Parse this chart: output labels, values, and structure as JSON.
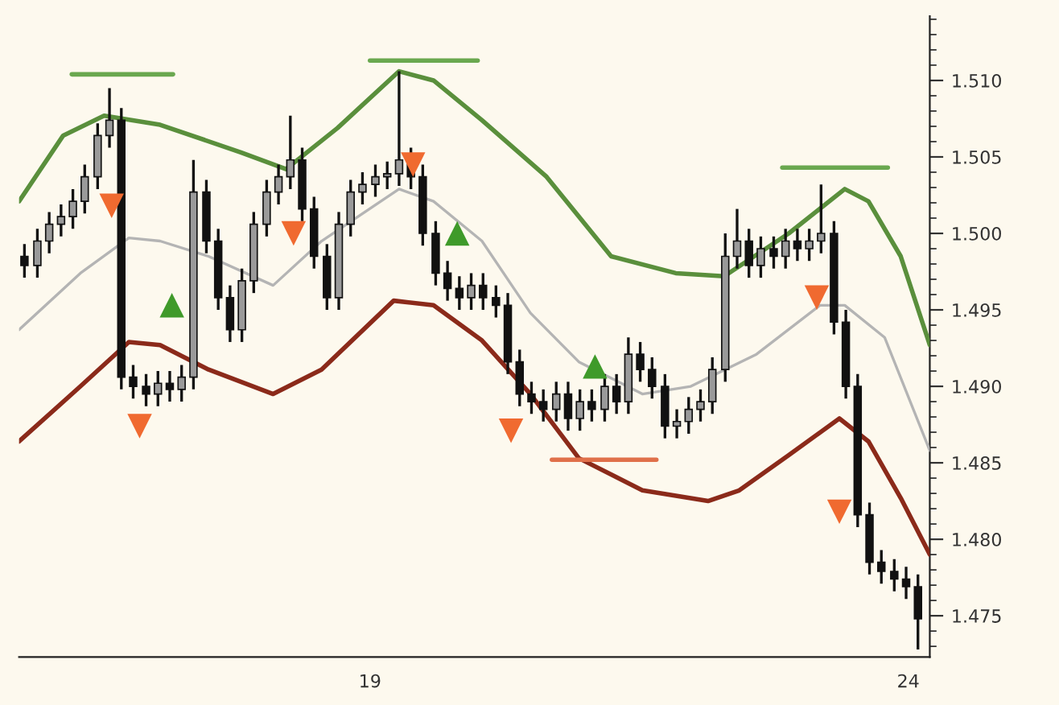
{
  "chart_data": {
    "type": "candlestick",
    "x": [
      15.79,
      15.91,
      16.02,
      16.13,
      16.24,
      16.35,
      16.47,
      16.58,
      16.69,
      16.8,
      16.92,
      17.03,
      17.14,
      17.25,
      17.36,
      17.48,
      17.59,
      17.7,
      17.81,
      17.92,
      18.04,
      18.15,
      18.26,
      18.37,
      18.48,
      18.6,
      18.71,
      18.82,
      18.93,
      19.05,
      19.16,
      19.27,
      19.38,
      19.49,
      19.61,
      19.72,
      19.83,
      19.94,
      20.05,
      20.17,
      20.28,
      20.39,
      20.5,
      20.61,
      20.73,
      20.84,
      20.95,
      21.06,
      21.18,
      21.29,
      21.4,
      21.51,
      21.62,
      21.74,
      21.85,
      21.96,
      22.07,
      22.18,
      22.3,
      22.41,
      22.52,
      22.63,
      22.75,
      22.86,
      22.97,
      23.08,
      23.19,
      23.31,
      23.42,
      23.53,
      23.64,
      23.75,
      23.87,
      23.98,
      24.09
    ],
    "ohlc": [
      [
        1.4985,
        1.4993,
        1.4971,
        1.4979
      ],
      [
        1.4979,
        1.5003,
        1.4971,
        1.4995
      ],
      [
        1.4995,
        1.5014,
        1.4987,
        1.5006
      ],
      [
        1.5006,
        1.5019,
        1.4998,
        1.5011
      ],
      [
        1.5011,
        1.5029,
        1.5003,
        1.5021
      ],
      [
        1.5021,
        1.5045,
        1.5013,
        1.5037
      ],
      [
        1.5037,
        1.5072,
        1.5029,
        1.5064
      ],
      [
        1.5064,
        1.5095,
        1.5056,
        1.5074
      ],
      [
        1.5074,
        1.5082,
        1.4898,
        1.4906
      ],
      [
        1.4906,
        1.4914,
        1.4892,
        1.49
      ],
      [
        1.49,
        1.4908,
        1.4887,
        1.4895
      ],
      [
        1.4895,
        1.491,
        1.4887,
        1.4902
      ],
      [
        1.4902,
        1.491,
        1.489,
        1.4898
      ],
      [
        1.4898,
        1.4914,
        1.489,
        1.4906
      ],
      [
        1.4906,
        1.5048,
        1.4898,
        1.5027
      ],
      [
        1.5027,
        1.5035,
        1.4987,
        1.4995
      ],
      [
        1.4995,
        1.5003,
        1.495,
        1.4958
      ],
      [
        1.4958,
        1.4966,
        1.4929,
        1.4937
      ],
      [
        1.4937,
        1.4977,
        1.4929,
        1.4969
      ],
      [
        1.4969,
        1.5014,
        1.4961,
        1.5006
      ],
      [
        1.5006,
        1.5035,
        1.4998,
        1.5027
      ],
      [
        1.5027,
        1.5045,
        1.5019,
        1.5037
      ],
      [
        1.5037,
        1.5077,
        1.5029,
        1.5048
      ],
      [
        1.5048,
        1.5056,
        1.5008,
        1.5016
      ],
      [
        1.5016,
        1.5024,
        1.4977,
        1.4985
      ],
      [
        1.4985,
        1.4993,
        1.495,
        1.4958
      ],
      [
        1.4958,
        1.5014,
        1.495,
        1.5006
      ],
      [
        1.5006,
        1.5035,
        1.4998,
        1.5027
      ],
      [
        1.5027,
        1.504,
        1.5019,
        1.5032
      ],
      [
        1.5032,
        1.5045,
        1.5024,
        1.5037
      ],
      [
        1.5037,
        1.5047,
        1.5029,
        1.5039
      ],
      [
        1.5039,
        1.5106,
        1.5031,
        1.5048
      ],
      [
        1.5048,
        1.5056,
        1.5029,
        1.5037
      ],
      [
        1.5037,
        1.5045,
        1.4992,
        1.5
      ],
      [
        1.5,
        1.5008,
        1.4966,
        1.4974
      ],
      [
        1.4974,
        1.4982,
        1.4956,
        1.4964
      ],
      [
        1.4964,
        1.4972,
        1.495,
        1.4958
      ],
      [
        1.4958,
        1.4974,
        1.495,
        1.4966
      ],
      [
        1.4966,
        1.4974,
        1.495,
        1.4958
      ],
      [
        1.4958,
        1.4966,
        1.4945,
        1.4953
      ],
      [
        1.4953,
        1.4961,
        1.4908,
        1.4916
      ],
      [
        1.4916,
        1.4924,
        1.4887,
        1.4895
      ],
      [
        1.4895,
        1.4903,
        1.4882,
        1.489
      ],
      [
        1.489,
        1.4898,
        1.4877,
        1.4885
      ],
      [
        1.4885,
        1.4903,
        1.4877,
        1.4895
      ],
      [
        1.4895,
        1.4903,
        1.4871,
        1.4879
      ],
      [
        1.4879,
        1.4898,
        1.4871,
        1.489
      ],
      [
        1.489,
        1.4898,
        1.4877,
        1.4885
      ],
      [
        1.4885,
        1.4908,
        1.4877,
        1.49
      ],
      [
        1.49,
        1.4908,
        1.4882,
        1.489
      ],
      [
        1.489,
        1.4932,
        1.4882,
        1.4921
      ],
      [
        1.4921,
        1.4929,
        1.4903,
        1.4911
      ],
      [
        1.4911,
        1.4919,
        1.4892,
        1.49
      ],
      [
        1.49,
        1.4908,
        1.4866,
        1.4874
      ],
      [
        1.4874,
        1.4885,
        1.4866,
        1.4877
      ],
      [
        1.4877,
        1.4893,
        1.4869,
        1.4885
      ],
      [
        1.4885,
        1.4898,
        1.4877,
        1.489
      ],
      [
        1.489,
        1.4919,
        1.4882,
        1.4911
      ],
      [
        1.4911,
        1.5,
        1.4903,
        1.4985
      ],
      [
        1.4985,
        1.5016,
        1.4977,
        1.4995
      ],
      [
        1.4995,
        1.5003,
        1.4971,
        1.4979
      ],
      [
        1.4979,
        1.4998,
        1.4971,
        1.499
      ],
      [
        1.499,
        1.4998,
        1.4977,
        1.4985
      ],
      [
        1.4985,
        1.5003,
        1.4977,
        1.4995
      ],
      [
        1.4995,
        1.5003,
        1.4982,
        1.499
      ],
      [
        1.499,
        1.5003,
        1.4982,
        1.4995
      ],
      [
        1.4995,
        1.5032,
        1.4987,
        1.5
      ],
      [
        1.5,
        1.5008,
        1.4934,
        1.4942
      ],
      [
        1.4942,
        1.495,
        1.4892,
        1.49
      ],
      [
        1.49,
        1.4908,
        1.4808,
        1.4816
      ],
      [
        1.4816,
        1.4824,
        1.4777,
        1.4785
      ],
      [
        1.4785,
        1.4793,
        1.4771,
        1.4779
      ],
      [
        1.4779,
        1.4787,
        1.4766,
        1.4774
      ],
      [
        1.4774,
        1.4782,
        1.4761,
        1.4769
      ],
      [
        1.4769,
        1.4777,
        1.4728,
        1.4748
      ]
    ],
    "series": [
      {
        "type": "line",
        "color": "#5a8f3c",
        "x": [
          15.74,
          16.15,
          16.53,
          17.05,
          17.8,
          18.22,
          18.7,
          19.27,
          19.59,
          20.04,
          20.64,
          21.24,
          21.84,
          22.29,
          22.89,
          23.41,
          23.63,
          23.93,
          24.2
        ],
        "values": [
          1.5021,
          1.5064,
          1.5077,
          1.5071,
          1.5053,
          1.5042,
          1.5069,
          1.5106,
          1.51,
          1.5074,
          1.5037,
          1.4985,
          1.4974,
          1.4972,
          1.5,
          1.5029,
          1.5021,
          1.4985,
          1.4927
        ]
      },
      {
        "type": "line",
        "color": "#b4b4b4",
        "x": [
          15.74,
          16.31,
          16.76,
          17.05,
          17.5,
          18.1,
          18.55,
          19.27,
          19.59,
          20.04,
          20.49,
          20.94,
          21.53,
          21.98,
          22.59,
          23.18,
          23.41,
          23.78,
          24.2
        ],
        "values": [
          1.4937,
          1.4974,
          1.4997,
          1.4995,
          1.4985,
          1.4966,
          1.4995,
          1.5029,
          1.5021,
          1.4995,
          1.4948,
          1.4916,
          1.4895,
          1.49,
          1.4921,
          1.4953,
          1.4953,
          1.4932,
          1.4858
        ]
      },
      {
        "type": "line",
        "color": "#8b2a1a",
        "x": [
          15.74,
          16.31,
          16.76,
          17.05,
          17.5,
          18.1,
          18.55,
          19.22,
          19.59,
          20.04,
          20.49,
          20.94,
          21.53,
          22.14,
          22.43,
          22.89,
          23.36,
          23.63,
          23.93,
          24.2
        ],
        "values": [
          1.4864,
          1.49,
          1.4929,
          1.4927,
          1.4911,
          1.4895,
          1.4911,
          1.4956,
          1.4953,
          1.493,
          1.4895,
          1.4853,
          1.4832,
          1.4825,
          1.4832,
          1.4855,
          1.4879,
          1.4864,
          1.4827,
          1.479
        ]
      },
      {
        "type": "line",
        "color": "#6aa84f",
        "x": [
          16.23,
          17.17
        ],
        "values": [
          1.5104,
          1.5104
        ]
      },
      {
        "type": "line",
        "color": "#6aa84f",
        "x": [
          19.0,
          20.0
        ],
        "values": [
          1.5113,
          1.5113
        ]
      },
      {
        "type": "line",
        "color": "#6aa84f",
        "x": [
          22.83,
          23.81
        ],
        "values": [
          1.5043,
          1.5043
        ]
      },
      {
        "type": "line",
        "color": "#e0704a",
        "x": [
          20.69,
          21.66
        ],
        "values": [
          1.4852,
          1.4852
        ]
      },
      {
        "type": "scatter",
        "marker": "triangle_down",
        "color": "#f06a30",
        "x": [
          16.6,
          16.86,
          18.29,
          19.4,
          20.31,
          23.15,
          23.36
        ],
        "values": [
          1.5018,
          1.4874,
          1.5,
          1.5045,
          1.4871,
          1.4958,
          1.4818
        ]
      },
      {
        "type": "scatter",
        "marker": "triangle",
        "color": "#3f9a2a",
        "x": [
          17.16,
          19.81,
          21.09
        ],
        "values": [
          1.4953,
          1.5,
          1.4913
        ]
      }
    ],
    "xlim": [
      15.74,
      24.2
    ],
    "xticks": [
      19,
      24
    ],
    "ylim": [
      1.4723,
      1.5142
    ],
    "yticks": [
      {
        "value": 1.475,
        "label": "1.475"
      },
      {
        "value": 1.48,
        "label": "1.480"
      },
      {
        "value": 1.485,
        "label": "1.485"
      },
      {
        "value": 1.49,
        "label": "1.490"
      },
      {
        "value": 1.495,
        "label": "1.495"
      },
      {
        "value": 1.5,
        "label": "1.500"
      },
      {
        "value": 1.505,
        "label": "1.505"
      },
      {
        "value": 1.51,
        "label": "1.510"
      }
    ],
    "grid": false,
    "legend": false
  }
}
